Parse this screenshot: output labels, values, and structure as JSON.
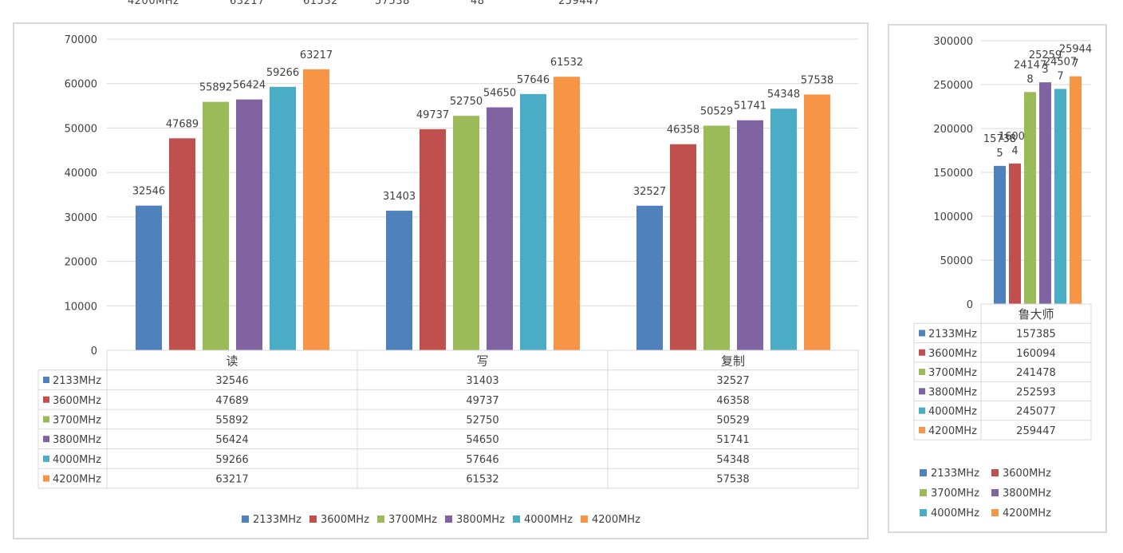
{
  "cut_top_row": {
    "label": "4200MHz",
    "values": [
      "63217",
      "61532",
      "57538",
      "48",
      "259447"
    ]
  },
  "colors": {
    "2133MHz": "#4f81bd",
    "3600MHz": "#c0504d",
    "3700MHz": "#9bbb59",
    "3800MHz": "#8064a2",
    "4000MHz": "#4bacc6",
    "4200MHz": "#f79646",
    "grid": "#d9d9d9",
    "border": "#d9d9d9",
    "text": "#404040"
  },
  "chart_data": [
    {
      "type": "bar",
      "title": "",
      "xlabel": "",
      "ylabel": "",
      "categories": [
        "读",
        "写",
        "复制"
      ],
      "ylim": [
        0,
        70000
      ],
      "yticks": [
        "0",
        "10000",
        "20000",
        "30000",
        "40000",
        "50000",
        "60000",
        "70000"
      ],
      "grid": true,
      "legend": "bottom",
      "data_table": true,
      "series": [
        {
          "name": "2133MHz",
          "values": [
            32546,
            31403,
            32527
          ]
        },
        {
          "name": "3600MHz",
          "values": [
            47689,
            49737,
            46358
          ]
        },
        {
          "name": "3700MHz",
          "values": [
            55892,
            52750,
            50529
          ]
        },
        {
          "name": "3800MHz",
          "values": [
            56424,
            54650,
            51741
          ]
        },
        {
          "name": "4000MHz",
          "values": [
            59266,
            57646,
            54348
          ]
        },
        {
          "name": "4200MHz",
          "values": [
            63217,
            61532,
            57538
          ]
        }
      ]
    },
    {
      "type": "bar",
      "title": "",
      "xlabel": "",
      "ylabel": "",
      "categories": [
        "鲁大师"
      ],
      "ylim": [
        0,
        300000
      ],
      "yticks": [
        "0",
        "50000",
        "100000",
        "150000",
        "200000",
        "250000",
        "300000"
      ],
      "grid": true,
      "legend": "bottom",
      "data_table": true,
      "bar_label_lines": [
        [
          "15738",
          "5"
        ],
        [
          "16009",
          "4"
        ],
        [
          "24147",
          "8"
        ],
        [
          "25259",
          "3"
        ],
        [
          "24507",
          "7"
        ],
        [
          "25944",
          "7"
        ]
      ],
      "series": [
        {
          "name": "2133MHz",
          "values": [
            157385
          ]
        },
        {
          "name": "3600MHz",
          "values": [
            160094
          ]
        },
        {
          "name": "3700MHz",
          "values": [
            241478
          ]
        },
        {
          "name": "3800MHz",
          "values": [
            252593
          ]
        },
        {
          "name": "4000MHz",
          "values": [
            245077
          ]
        },
        {
          "name": "4200MHz",
          "values": [
            259447
          ]
        }
      ]
    }
  ]
}
